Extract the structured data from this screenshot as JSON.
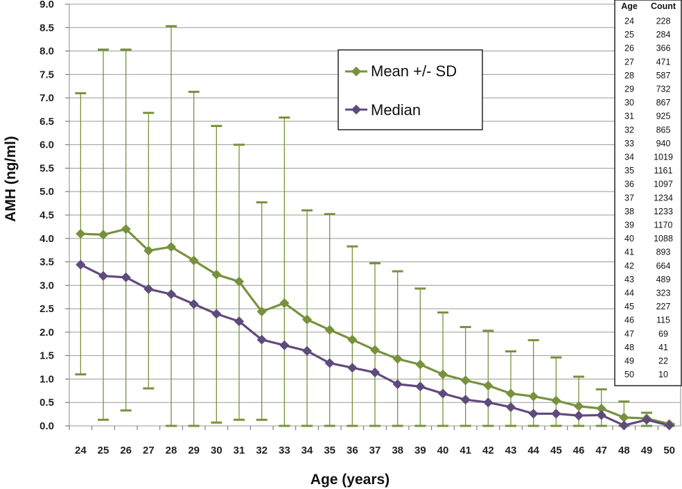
{
  "chart_data": {
    "type": "line",
    "xlabel": "Age (years)",
    "ylabel": "AMH (ng/ml)",
    "ylim": [
      0,
      9
    ],
    "y_ticks": [
      "0.0",
      "0.5",
      "1.0",
      "1.5",
      "2.0",
      "2.5",
      "3.0",
      "3.5",
      "4.0",
      "4.5",
      "5.0",
      "5.5",
      "6.0",
      "6.5",
      "7.0",
      "7.5",
      "8.0",
      "8.5",
      "9.0"
    ],
    "grid": "horizontal",
    "legend_position": "top-center",
    "x": [
      24,
      25,
      26,
      27,
      28,
      29,
      30,
      31,
      32,
      33,
      34,
      35,
      36,
      37,
      38,
      39,
      40,
      41,
      42,
      43,
      44,
      45,
      46,
      47,
      48,
      49,
      50
    ],
    "x_labels": [
      "24",
      "25",
      "26",
      "27",
      "28",
      "29",
      "30",
      "31",
      "32",
      "33",
      "34",
      "35",
      "36",
      "37",
      "38",
      "39",
      "40",
      "41",
      "42",
      "43",
      "44",
      "45",
      "46",
      "47",
      "48",
      "49",
      "50"
    ],
    "series": [
      {
        "name": "Mean +/- SD",
        "color": "#76923c",
        "values": [
          4.1,
          4.08,
          4.2,
          3.74,
          3.82,
          3.53,
          3.23,
          3.08,
          2.44,
          2.62,
          2.27,
          2.05,
          1.84,
          1.62,
          1.43,
          1.31,
          1.1,
          0.97,
          0.86,
          0.69,
          0.63,
          0.54,
          0.42,
          0.37,
          0.18,
          0.16,
          0.04
        ],
        "error_upper": [
          7.1,
          8.03,
          8.03,
          6.68,
          8.53,
          7.13,
          6.4,
          6.0,
          4.77,
          6.58,
          4.6,
          4.52,
          3.83,
          3.47,
          3.3,
          2.93,
          2.42,
          2.11,
          2.03,
          1.59,
          1.83,
          1.46,
          1.05,
          0.78,
          0.52,
          0.28,
          0.04
        ],
        "error_lower": [
          1.1,
          0.13,
          0.33,
          0.8,
          0.0,
          0.0,
          0.07,
          0.13,
          0.13,
          0.0,
          0.0,
          0.0,
          0.0,
          0.0,
          0.0,
          0.0,
          0.0,
          0.0,
          0.0,
          0.0,
          0.0,
          0.0,
          0.0,
          0.0,
          0.0,
          0.0,
          0.0
        ]
      },
      {
        "name": "Median",
        "color": "#604a7b",
        "values": [
          3.44,
          3.2,
          3.17,
          2.92,
          2.81,
          2.6,
          2.39,
          2.23,
          1.84,
          1.72,
          1.6,
          1.34,
          1.24,
          1.14,
          0.89,
          0.84,
          0.69,
          0.56,
          0.5,
          0.4,
          0.26,
          0.26,
          0.22,
          0.23,
          0.01,
          0.13,
          0.01
        ]
      }
    ],
    "table": {
      "headers": [
        "Age",
        "Count"
      ],
      "rows": [
        [
          "24",
          "228"
        ],
        [
          "25",
          "284"
        ],
        [
          "26",
          "366"
        ],
        [
          "27",
          "471"
        ],
        [
          "28",
          "587"
        ],
        [
          "29",
          "732"
        ],
        [
          "30",
          "867"
        ],
        [
          "31",
          "925"
        ],
        [
          "32",
          "865"
        ],
        [
          "33",
          "940"
        ],
        [
          "34",
          "1019"
        ],
        [
          "35",
          "1161"
        ],
        [
          "36",
          "1097"
        ],
        [
          "37",
          "1234"
        ],
        [
          "38",
          "1233"
        ],
        [
          "39",
          "1170"
        ],
        [
          "40",
          "1088"
        ],
        [
          "41",
          "893"
        ],
        [
          "42",
          "664"
        ],
        [
          "43",
          "489"
        ],
        [
          "44",
          "323"
        ],
        [
          "45",
          "227"
        ],
        [
          "46",
          "115"
        ],
        [
          "47",
          "69"
        ],
        [
          "48",
          "41"
        ],
        [
          "49",
          "22"
        ],
        [
          "50",
          "10"
        ]
      ]
    }
  }
}
